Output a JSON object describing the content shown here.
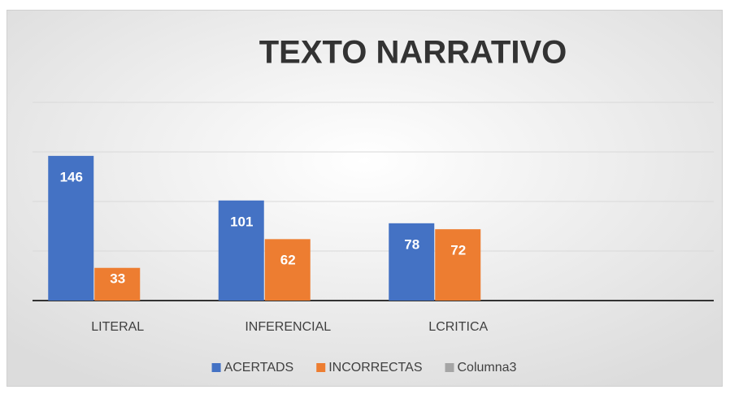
{
  "chart_data": {
    "type": "bar",
    "title": "TEXTO NARRATIVO",
    "categories": [
      "LITERAL",
      "INFERENCIAL",
      "LCRITICA",
      null
    ],
    "series": [
      {
        "name": "ACERTADS",
        "color": "#4472c4",
        "values": [
          146,
          101,
          78,
          null
        ]
      },
      {
        "name": "INCORRECTAS",
        "color": "#ed7d31",
        "values": [
          33,
          62,
          72,
          null
        ]
      },
      {
        "name": "Columna3",
        "color": "#a5a5a5",
        "values": [
          null,
          null,
          null,
          null
        ]
      }
    ],
    "ylim": [
      0,
      200
    ],
    "yticks": [
      0,
      50,
      100,
      150,
      200
    ],
    "grid": true,
    "legend": "bottom"
  }
}
